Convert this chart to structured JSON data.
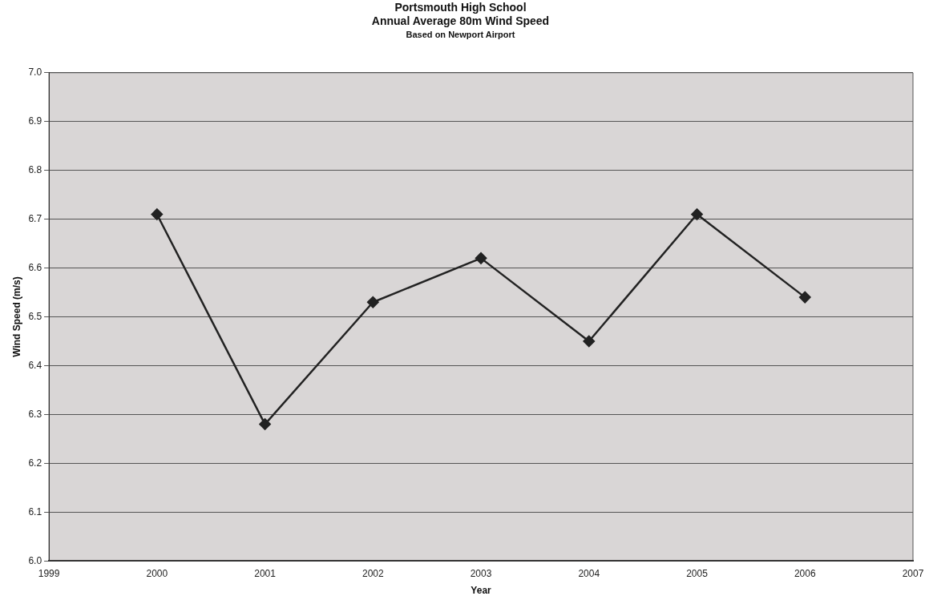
{
  "chart_data": {
    "type": "line",
    "title": "Portsmouth High School\nAnnual Average 80m Wind Speed",
    "subtitle": "Based on Newport Airport",
    "xlabel": "Year",
    "ylabel": "Wind Speed (m/s)",
    "x": [
      2000,
      2001,
      2002,
      2003,
      2004,
      2005,
      2006
    ],
    "series": [
      {
        "color": "#222222",
        "values": [
          6.71,
          6.28,
          6.53,
          6.62,
          6.45,
          6.71,
          6.54
        ]
      }
    ],
    "xlim": [
      1999,
      2007
    ],
    "xticks": [
      1999,
      2000,
      2001,
      2002,
      2003,
      2004,
      2005,
      2006,
      2007
    ],
    "ylim": [
      6.0,
      7.0
    ],
    "yticks": [
      {
        "value": 6.0,
        "label": "6.0"
      },
      {
        "value": 6.1,
        "label": "6.1"
      },
      {
        "value": 6.2,
        "label": "6.2"
      },
      {
        "value": 6.3,
        "label": "6.3"
      },
      {
        "value": 6.4,
        "label": "6.4"
      },
      {
        "value": 6.5,
        "label": "6.5"
      },
      {
        "value": 6.6,
        "label": "6.6"
      },
      {
        "value": 6.7,
        "label": "6.7"
      },
      {
        "value": 6.8,
        "label": "6.8"
      },
      {
        "value": 6.9,
        "label": "6.9"
      },
      {
        "value": 7.0,
        "label": "7.0"
      }
    ],
    "grid": "y",
    "legend": false,
    "marker": "diamond",
    "line_style": "solid"
  }
}
